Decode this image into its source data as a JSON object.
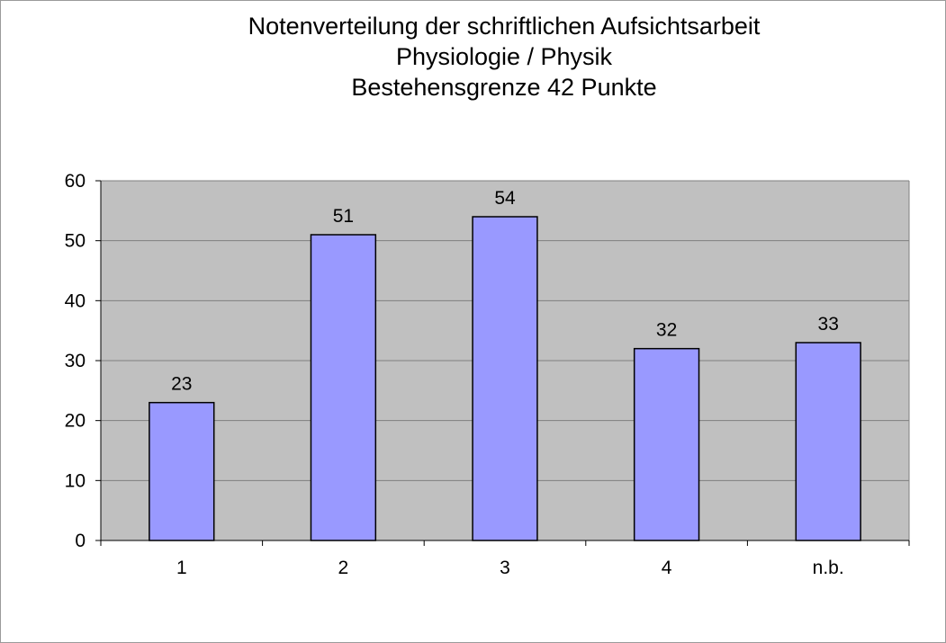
{
  "chart_data": {
    "type": "bar",
    "title": "Notenverteilung der schriftlichen Aufsichtsarbeit",
    "subtitle": "Physiologie / Physik",
    "subtitle2": "Bestehensgrenze 42 Punkte",
    "categories": [
      "1",
      "2",
      "3",
      "4",
      "n.b."
    ],
    "values": [
      23,
      51,
      54,
      32,
      33
    ],
    "ylim": [
      0,
      60
    ],
    "yticks": [
      0,
      10,
      20,
      30,
      40,
      50,
      60
    ],
    "grid": true,
    "legend": "none",
    "colors": {
      "bar_fill": "#9999ff",
      "bar_stroke": "#000000",
      "plot_background": "#c0c0c0",
      "gridline": "#7f7f7f"
    }
  }
}
